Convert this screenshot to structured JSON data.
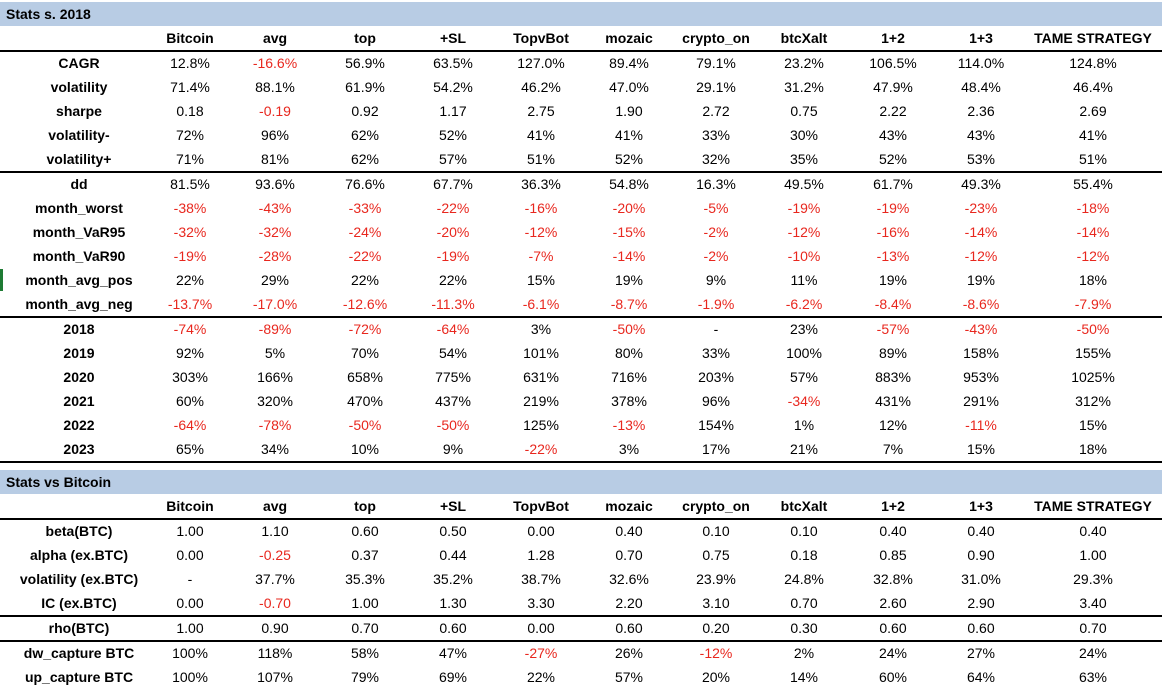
{
  "section1": {
    "title": "Stats s. 2018",
    "columns": [
      "Bitcoin",
      "avg",
      "top",
      "+SL",
      "TopvBot",
      "mozaic",
      "crypto_on",
      "btcXalt",
      "1+2",
      "1+3",
      "TAME STRATEGY"
    ],
    "groups": [
      {
        "rows": [
          {
            "label": "CAGR",
            "values": [
              "12.8%",
              "-16.6%",
              "56.9%",
              "63.5%",
              "127.0%",
              "89.4%",
              "79.1%",
              "23.2%",
              "106.5%",
              "114.0%",
              "124.8%"
            ]
          },
          {
            "label": "volatility",
            "values": [
              "71.4%",
              "88.1%",
              "61.9%",
              "54.2%",
              "46.2%",
              "47.0%",
              "29.1%",
              "31.2%",
              "47.9%",
              "48.4%",
              "46.4%"
            ]
          },
          {
            "label": "sharpe",
            "values": [
              "0.18",
              "-0.19",
              "0.92",
              "1.17",
              "2.75",
              "1.90",
              "2.72",
              "0.75",
              "2.22",
              "2.36",
              "2.69"
            ]
          },
          {
            "label": "volatility-",
            "values": [
              "72%",
              "96%",
              "62%",
              "52%",
              "41%",
              "41%",
              "33%",
              "30%",
              "43%",
              "43%",
              "41%"
            ]
          },
          {
            "label": "volatility+",
            "values": [
              "71%",
              "81%",
              "62%",
              "57%",
              "51%",
              "52%",
              "32%",
              "35%",
              "52%",
              "53%",
              "51%"
            ]
          }
        ]
      },
      {
        "rows": [
          {
            "label": "dd",
            "values": [
              "81.5%",
              "93.6%",
              "76.6%",
              "67.7%",
              "36.3%",
              "54.8%",
              "16.3%",
              "49.5%",
              "61.7%",
              "49.3%",
              "55.4%"
            ]
          },
          {
            "label": "month_worst",
            "values": [
              "-38%",
              "-43%",
              "-33%",
              "-22%",
              "-16%",
              "-20%",
              "-5%",
              "-19%",
              "-19%",
              "-23%",
              "-18%"
            ]
          },
          {
            "label": "month_VaR95",
            "values": [
              "-32%",
              "-32%",
              "-24%",
              "-20%",
              "-12%",
              "-15%",
              "-2%",
              "-12%",
              "-16%",
              "-14%",
              "-14%"
            ]
          },
          {
            "label": "month_VaR90",
            "values": [
              "-19%",
              "-28%",
              "-22%",
              "-19%",
              "-7%",
              "-14%",
              "-2%",
              "-10%",
              "-13%",
              "-12%",
              "-12%"
            ]
          },
          {
            "label": "month_avg_pos",
            "values": [
              "22%",
              "29%",
              "22%",
              "22%",
              "15%",
              "19%",
              "9%",
              "11%",
              "19%",
              "19%",
              "18%"
            ]
          },
          {
            "label": "month_avg_neg",
            "values": [
              "-13.7%",
              "-17.0%",
              "-12.6%",
              "-11.3%",
              "-6.1%",
              "-8.7%",
              "-1.9%",
              "-6.2%",
              "-8.4%",
              "-8.6%",
              "-7.9%"
            ]
          }
        ]
      },
      {
        "rows": [
          {
            "label": "2018",
            "values": [
              "-74%",
              "-89%",
              "-72%",
              "-64%",
              "3%",
              "-50%",
              "-",
              "23%",
              "-57%",
              "-43%",
              "-50%"
            ]
          },
          {
            "label": "2019",
            "values": [
              "92%",
              "5%",
              "70%",
              "54%",
              "101%",
              "80%",
              "33%",
              "100%",
              "89%",
              "158%",
              "155%"
            ]
          },
          {
            "label": "2020",
            "values": [
              "303%",
              "166%",
              "658%",
              "775%",
              "631%",
              "716%",
              "203%",
              "57%",
              "883%",
              "953%",
              "1025%"
            ]
          },
          {
            "label": "2021",
            "values": [
              "60%",
              "320%",
              "470%",
              "437%",
              "219%",
              "378%",
              "96%",
              "-34%",
              "431%",
              "291%",
              "312%"
            ]
          },
          {
            "label": "2022",
            "values": [
              "-64%",
              "-78%",
              "-50%",
              "-50%",
              "125%",
              "-13%",
              "154%",
              "1%",
              "12%",
              "-11%",
              "15%"
            ]
          },
          {
            "label": "2023",
            "values": [
              "65%",
              "34%",
              "10%",
              "9%",
              "-22%",
              "3%",
              "17%",
              "21%",
              "7%",
              "15%",
              "18%"
            ]
          }
        ]
      }
    ]
  },
  "section2": {
    "title": "Stats vs Bitcoin",
    "columns": [
      "Bitcoin",
      "avg",
      "top",
      "+SL",
      "TopvBot",
      "mozaic",
      "crypto_on",
      "btcXalt",
      "1+2",
      "1+3",
      "TAME STRATEGY"
    ],
    "groups": [
      {
        "rows": [
          {
            "label": "beta(BTC)",
            "values": [
              "1.00",
              "1.10",
              "0.60",
              "0.50",
              "0.00",
              "0.40",
              "0.10",
              "0.10",
              "0.40",
              "0.40",
              "0.40"
            ]
          },
          {
            "label": "alpha (ex.BTC)",
            "values": [
              "0.00",
              "-0.25",
              "0.37",
              "0.44",
              "1.28",
              "0.70",
              "0.75",
              "0.18",
              "0.85",
              "0.90",
              "1.00"
            ]
          },
          {
            "label": "volatility (ex.BTC)",
            "values": [
              "-",
              "37.7%",
              "35.3%",
              "35.2%",
              "38.7%",
              "32.6%",
              "23.9%",
              "24.8%",
              "32.8%",
              "31.0%",
              "29.3%"
            ]
          },
          {
            "label": "IC (ex.BTC)",
            "values": [
              "0.00",
              "-0.70",
              "1.00",
              "1.30",
              "3.30",
              "2.20",
              "3.10",
              "0.70",
              "2.60",
              "2.90",
              "3.40"
            ]
          }
        ]
      },
      {
        "rows": [
          {
            "label": "rho(BTC)",
            "values": [
              "1.00",
              "0.90",
              "0.70",
              "0.60",
              "0.00",
              "0.60",
              "0.20",
              "0.30",
              "0.60",
              "0.60",
              "0.70"
            ]
          }
        ]
      },
      {
        "rows": [
          {
            "label": "dw_capture BTC",
            "values": [
              "100%",
              "118%",
              "58%",
              "47%",
              "-27%",
              "26%",
              "-12%",
              "2%",
              "24%",
              "27%",
              "24%"
            ]
          },
          {
            "label": "up_capture BTC",
            "values": [
              "100%",
              "107%",
              "79%",
              "69%",
              "22%",
              "57%",
              "20%",
              "14%",
              "60%",
              "64%",
              "63%"
            ]
          }
        ]
      }
    ]
  },
  "colors": {
    "header_band": "#b8cce4",
    "negative_text": "#e8271e",
    "row_marker": "#1e7b34"
  }
}
